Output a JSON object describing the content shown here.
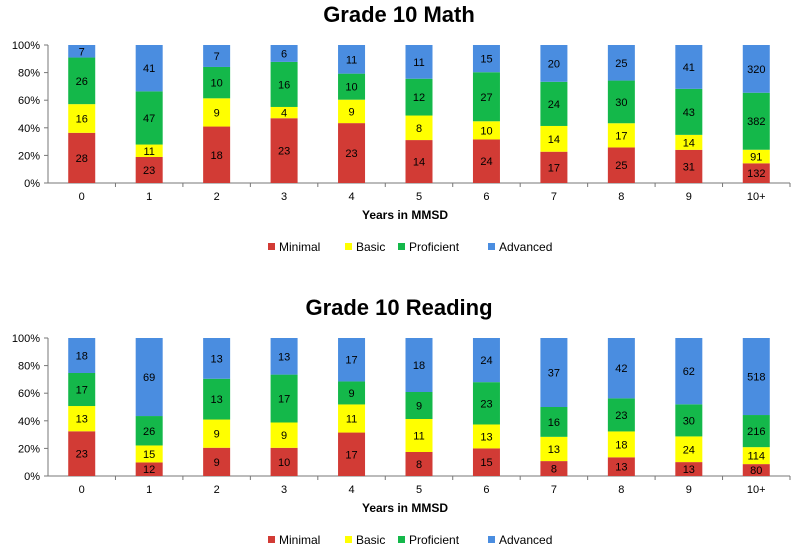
{
  "chart_data": [
    {
      "type": "bar",
      "stacked": "percent",
      "title": "Grade 10 Math",
      "xlabel": "Years in MMSD",
      "ylabel": "",
      "ylim": [
        0,
        100
      ],
      "yticks": [
        "0%",
        "20%",
        "40%",
        "60%",
        "80%",
        "100%"
      ],
      "categories": [
        "0",
        "1",
        "2",
        "3",
        "4",
        "5",
        "6",
        "7",
        "8",
        "9",
        "10+"
      ],
      "legend_position": "bottom",
      "series": [
        {
          "name": "Minimal",
          "color": "#d23b35",
          "values": [
            28,
            23,
            18,
            23,
            23,
            14,
            24,
            17,
            25,
            31,
            132
          ]
        },
        {
          "name": "Basic",
          "color": "#ffff00",
          "values": [
            16,
            11,
            9,
            4,
            9,
            8,
            10,
            14,
            17,
            14,
            91
          ]
        },
        {
          "name": "Proficient",
          "color": "#14b84a",
          "values": [
            26,
            47,
            10,
            16,
            10,
            12,
            27,
            24,
            30,
            43,
            382
          ]
        },
        {
          "name": "Advanced",
          "color": "#4a8de0",
          "values": [
            7,
            41,
            7,
            6,
            11,
            11,
            15,
            20,
            25,
            41,
            320
          ]
        }
      ]
    },
    {
      "type": "bar",
      "stacked": "percent",
      "title": "Grade 10 Reading",
      "xlabel": "Years in MMSD",
      "ylabel": "",
      "ylim": [
        0,
        100
      ],
      "yticks": [
        "0%",
        "20%",
        "40%",
        "60%",
        "80%",
        "100%"
      ],
      "categories": [
        "0",
        "1",
        "2",
        "3",
        "4",
        "5",
        "6",
        "7",
        "8",
        "9",
        "10+"
      ],
      "legend_position": "bottom",
      "series": [
        {
          "name": "Minimal",
          "color": "#d23b35",
          "values": [
            23,
            12,
            9,
            10,
            17,
            8,
            15,
            8,
            13,
            13,
            80
          ]
        },
        {
          "name": "Basic",
          "color": "#ffff00",
          "values": [
            13,
            15,
            9,
            9,
            11,
            11,
            13,
            13,
            18,
            24,
            114
          ]
        },
        {
          "name": "Proficient",
          "color": "#14b84a",
          "values": [
            17,
            26,
            13,
            17,
            9,
            9,
            23,
            16,
            23,
            30,
            216
          ]
        },
        {
          "name": "Advanced",
          "color": "#4a8de0",
          "values": [
            18,
            69,
            13,
            13,
            17,
            18,
            24,
            37,
            42,
            62,
            518
          ]
        }
      ]
    }
  ]
}
